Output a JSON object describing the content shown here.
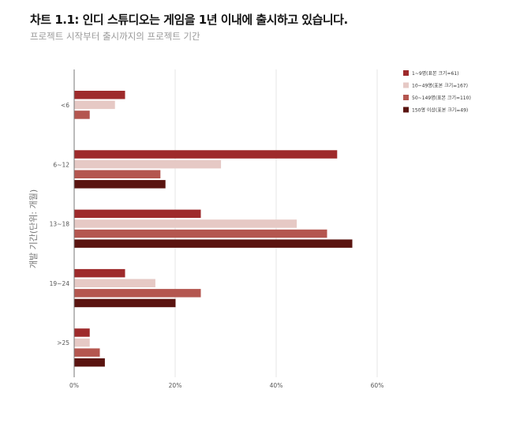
{
  "title": "차트 1.1: 인디 스튜디오는 게임을 1년 이내에 출시하고 있습니다.",
  "subtitle": "프로젝트 시작부터 출시까지의 프로젝트 기간",
  "chart_data": {
    "type": "bar",
    "orientation": "horizontal",
    "ylabel": "개발 기간(단위: 개월)",
    "xlabel": "",
    "categories": [
      "<6",
      "6~12",
      "13~18",
      "19~24",
      ">25"
    ],
    "xlim": [
      0,
      60
    ],
    "xticks": [
      "0%",
      "20%",
      "40%",
      "60%"
    ],
    "xtick_values": [
      0,
      20,
      40,
      60
    ],
    "grid": true,
    "legend_position": "top-right",
    "series": [
      {
        "name": "1~9명(표본 크기=61)",
        "color": "#9e2a2b",
        "values": [
          10,
          52,
          25,
          10,
          3
        ]
      },
      {
        "name": "10~49명(표본 크기=167)",
        "color": "#e6c9c5",
        "values": [
          8,
          29,
          44,
          16,
          3
        ]
      },
      {
        "name": "50~149명(표본 크기=110)",
        "color": "#b4564f",
        "values": [
          3,
          17,
          50,
          25,
          5
        ]
      },
      {
        "name": "150명 이상(표본 크기=49)",
        "color": "#5a1410",
        "values": [
          0,
          18,
          55,
          20,
          6
        ]
      }
    ]
  }
}
